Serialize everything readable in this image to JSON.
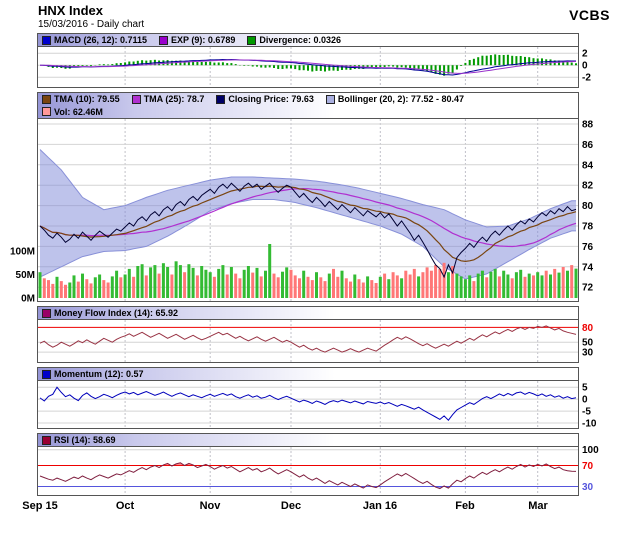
{
  "header": {
    "title": "HNX Index",
    "subtitle": "15/03/2016 - Daily chart",
    "brand": "VCBS"
  },
  "panels": {
    "macd": {
      "legend": [
        {
          "label": "MACD (26, 12): 0.7115",
          "color": "#0000cc"
        },
        {
          "label": "EXP (9): 0.6789",
          "color": "#9900cc"
        },
        {
          "label": "Divergence: 0.0326",
          "color": "#009900"
        }
      ],
      "ticks": [
        {
          "v": 2,
          "label": "2"
        },
        {
          "v": 0,
          "label": "0"
        },
        {
          "v": -2,
          "label": "-2"
        }
      ]
    },
    "price": {
      "legend_row1": [
        {
          "label": "TMA (10): 79.55",
          "color": "#7a4510"
        },
        {
          "label": "TMA (25): 78.7",
          "color": "#b030d0"
        },
        {
          "label": "Closing Price: 79.63",
          "color": "#000066"
        },
        {
          "label": "Bollinger (20, 2): 77.52 - 80.47",
          "color": "#aab0e0"
        }
      ],
      "legend_row2": [
        {
          "label": "Vol: 62.46M",
          "color": "#ff9999"
        }
      ],
      "ticks": [
        {
          "v": 88,
          "label": "88"
        },
        {
          "v": 86,
          "label": "86"
        },
        {
          "v": 84,
          "label": "84"
        },
        {
          "v": 82,
          "label": "82"
        },
        {
          "v": 80,
          "label": "80"
        },
        {
          "v": 78,
          "label": "78"
        },
        {
          "v": 76,
          "label": "76"
        },
        {
          "v": 74,
          "label": "74"
        },
        {
          "v": 72,
          "label": "72"
        }
      ],
      "volume_ticks": [
        {
          "v": 100,
          "label": "100M"
        },
        {
          "v": 50,
          "label": "50M"
        },
        {
          "v": 0,
          "label": "0M"
        }
      ]
    },
    "mfi": {
      "legend": [
        {
          "label": "Money Flow Index (14): 65.92",
          "color": "#990066"
        }
      ],
      "ticks": [
        {
          "v": 80,
          "label": "80",
          "color": "#ee0000"
        },
        {
          "v": 50,
          "label": "50"
        },
        {
          "v": 30,
          "label": "30"
        }
      ],
      "threshold": 80
    },
    "momentum": {
      "legend": [
        {
          "label": "Momentum (12): 0.57",
          "color": "#0000cc"
        }
      ],
      "ticks": [
        {
          "v": 5,
          "label": "5"
        },
        {
          "v": 0,
          "label": "0"
        },
        {
          "v": -5,
          "label": "-5"
        },
        {
          "v": -10,
          "label": "-10"
        }
      ]
    },
    "rsi": {
      "legend": [
        {
          "label": "RSI (14): 58.69",
          "color": "#990033"
        }
      ],
      "ticks": [
        {
          "v": 100,
          "label": "100"
        },
        {
          "v": 70,
          "label": "70",
          "color": "#ee0000"
        },
        {
          "v": 30,
          "label": "30",
          "color": "#5555dd"
        }
      ],
      "upper": 70,
      "lower": 30
    }
  },
  "xaxis": {
    "labels": [
      {
        "text": "Sep 15",
        "i": 0
      },
      {
        "text": "Oct",
        "i": 20
      },
      {
        "text": "Nov",
        "i": 40
      },
      {
        "text": "Dec",
        "i": 59
      },
      {
        "text": "Jan 16",
        "i": 80
      },
      {
        "text": "Feb",
        "i": 100
      },
      {
        "text": "Mar",
        "i": 117
      }
    ]
  },
  "colors": {
    "grid": "#d4d4d4",
    "vgrid": "#c0c0c8",
    "border": "#555555",
    "close_line": "#000033",
    "tma10": "#7a4510",
    "tma25": "#b030d0",
    "boll_fill": "rgba(125,135,215,0.5)",
    "boll_edge": "#8890d8",
    "vol_up": "#33bb33",
    "vol_down": "#ff7777",
    "macd_line": "#000099",
    "exp_line": "#9933cc",
    "hist": "#009900",
    "mfi_line": "#993344",
    "mfi_over_fill": "rgba(255,40,40,0.5)",
    "momentum_line": "#0000bb",
    "rsi_line": "#802040",
    "rsi_over_fill": "rgba(255,40,40,0.55)",
    "rsi_under_fill": "rgba(70,70,230,0.55)"
  },
  "chart_data": {
    "type": "line",
    "title": "HNX Index - Daily chart",
    "date_shown": "15/03/2016",
    "x_months": [
      "Sep 15",
      "Oct",
      "Nov",
      "Dec",
      "Jan 16",
      "Feb",
      "Mar"
    ],
    "month_start_index": [
      0,
      20,
      40,
      59,
      80,
      100,
      117
    ],
    "price_ylim": [
      72,
      88
    ],
    "volume_ylim_m": [
      0,
      100
    ],
    "macd_ylim": [
      -2,
      2
    ],
    "mfi_ylim": [
      30,
      80
    ],
    "momentum_ylim": [
      -10,
      5
    ],
    "rsi_ylim": [
      30,
      100
    ],
    "close": [
      78.0,
      77.6,
      77.1,
      76.8,
      77.3,
      76.9,
      76.4,
      76.7,
      77.2,
      76.8,
      77.4,
      77.0,
      76.6,
      77.1,
      77.5,
      77.2,
      76.9,
      77.3,
      77.7,
      77.5,
      77.9,
      78.3,
      78.0,
      78.6,
      78.9,
      78.5,
      79.1,
      79.4,
      79.0,
      79.6,
      79.9,
      79.5,
      80.1,
      80.4,
      80.0,
      80.6,
      80.9,
      80.5,
      81.0,
      81.3,
      81.6,
      81.2,
      81.8,
      82.1,
      81.7,
      82.2,
      81.8,
      81.4,
      81.9,
      82.2,
      81.8,
      82.1,
      81.6,
      81.9,
      82.2,
      81.7,
      81.3,
      81.7,
      82.0,
      81.8,
      81.3,
      80.8,
      81.2,
      80.7,
      80.3,
      80.8,
      80.4,
      79.9,
      80.4,
      80.0,
      79.6,
      80.1,
      79.7,
      79.3,
      79.8,
      79.4,
      79.0,
      79.5,
      79.2,
      78.9,
      79.3,
      78.8,
      79.2,
      78.6,
      78.0,
      78.5,
      77.9,
      77.3,
      76.6,
      77.1,
      76.4,
      75.7,
      74.9,
      74.2,
      73.8,
      73.0,
      74.2,
      73.4,
      74.9,
      75.4,
      75.8,
      76.3,
      75.9,
      76.5,
      76.9,
      76.5,
      77.1,
      77.5,
      77.1,
      77.6,
      78.0,
      77.6,
      78.1,
      78.5,
      78.2,
      78.7,
      78.4,
      78.9,
      79.3,
      79.0,
      79.5,
      79.2,
      79.7,
      79.4,
      79.9,
      79.5,
      79.63
    ],
    "volume_m": [
      55,
      42,
      38,
      30,
      45,
      36,
      28,
      33,
      48,
      35,
      52,
      40,
      31,
      44,
      50,
      38,
      33,
      46,
      58,
      44,
      50,
      62,
      45,
      68,
      72,
      48,
      65,
      70,
      52,
      74,
      66,
      50,
      78,
      70,
      55,
      72,
      64,
      48,
      68,
      60,
      55,
      45,
      62,
      70,
      50,
      66,
      52,
      42,
      60,
      68,
      54,
      64,
      46,
      58,
      115,
      52,
      44,
      56,
      65,
      60,
      48,
      42,
      58,
      45,
      38,
      55,
      44,
      36,
      52,
      62,
      45,
      58,
      42,
      35,
      50,
      40,
      33,
      46,
      38,
      32,
      45,
      52,
      40,
      55,
      48,
      42,
      58,
      50,
      62,
      46,
      55,
      65,
      58,
      70,
      62,
      75,
      55,
      68,
      52,
      46,
      40,
      48,
      36,
      52,
      58,
      44,
      56,
      62,
      46,
      58,
      50,
      42,
      55,
      60,
      45,
      52,
      48,
      55,
      48,
      58,
      50,
      62,
      54,
      66,
      58,
      70,
      62.46
    ],
    "boll_upper_ctrl": [
      85.5,
      83.5,
      80.8,
      79.6,
      80.0,
      80.8,
      81.5,
      82.0,
      82.5,
      82.8,
      82.8,
      82.7,
      82.6,
      82.4,
      82.1,
      81.7,
      81.2,
      80.7,
      80.1,
      79.6,
      78.6,
      77.9,
      78.0,
      78.7,
      79.7,
      80.47
    ],
    "boll_lower_ctrl": [
      73.0,
      74.0,
      75.0,
      75.5,
      75.6,
      76.0,
      77.0,
      78.2,
      79.5,
      80.2,
      80.6,
      80.6,
      80.3,
      79.8,
      79.2,
      78.6,
      78.0,
      77.2,
      76.0,
      74.0,
      72.8,
      73.3,
      74.5,
      75.7,
      76.8,
      77.52
    ],
    "mfi": [
      48,
      52,
      45,
      40,
      44,
      50,
      46,
      42,
      47,
      53,
      49,
      55,
      50,
      46,
      52,
      58,
      54,
      50,
      56,
      60,
      63,
      67,
      62,
      66,
      70,
      65,
      60,
      64,
      68,
      63,
      58,
      62,
      66,
      61,
      56,
      60,
      64,
      59,
      55,
      58,
      62,
      66,
      70,
      65,
      68,
      63,
      58,
      62,
      57,
      53,
      57,
      61,
      56,
      52,
      56,
      60,
      55,
      50,
      54,
      50,
      45,
      40,
      44,
      38,
      34,
      38,
      33,
      30,
      34,
      38,
      34,
      30,
      33,
      37,
      33,
      30,
      34,
      38,
      35,
      32,
      38,
      44,
      49,
      55,
      60,
      56,
      61,
      57,
      52,
      47,
      43,
      47,
      42,
      38,
      42,
      46,
      42,
      47,
      52,
      48,
      53,
      58,
      54,
      60,
      65,
      61,
      66,
      71,
      67,
      72,
      76,
      72,
      77,
      80,
      76,
      80,
      78,
      82,
      80,
      83,
      79,
      75,
      78,
      73,
      70,
      68,
      65.92
    ],
    "momentum": [
      0.5,
      -0.8,
      1.2,
      2.0,
      5.0,
      2.8,
      1.0,
      1.8,
      0.4,
      -0.6,
      1.5,
      2.6,
      1.2,
      0.2,
      1.0,
      2.0,
      1.4,
      0.6,
      1.6,
      2.4,
      3.0,
      2.2,
      2.8,
      1.8,
      2.5,
      3.2,
      2.4,
      1.6,
      2.2,
      3.0,
      2.0,
      1.2,
      2.0,
      2.6,
      1.8,
      1.0,
      1.8,
      1.2,
      0.6,
      1.4,
      2.0,
      1.2,
      1.8,
      2.4,
      1.6,
      2.2,
      1.0,
      0.4,
      1.2,
      1.8,
      0.8,
      1.4,
      0.4,
      0.8,
      1.6,
      0.6,
      -0.2,
      0.6,
      1.2,
      0.4,
      -0.4,
      -1.2,
      -0.4,
      -1.0,
      -1.8,
      -0.8,
      -1.4,
      -2.2,
      -1.2,
      -0.6,
      -1.2,
      -0.4,
      -1.0,
      -1.6,
      -0.8,
      -1.4,
      -2.0,
      -1.0,
      -1.4,
      -1.8,
      -1.2,
      -2.0,
      -1.4,
      -2.2,
      -3.0,
      -2.2,
      -2.8,
      -3.5,
      -4.2,
      -3.4,
      -4.5,
      -5.5,
      -6.5,
      -7.5,
      -8.5,
      -7.0,
      -8.8,
      -6.5,
      -4.5,
      -3.5,
      -2.5,
      -1.5,
      -2.2,
      -1.0,
      0.2,
      1.0,
      0.2,
      1.2,
      2.2,
      1.4,
      2.4,
      1.6,
      2.6,
      3.0,
      2.0,
      2.8,
      2.2,
      1.4,
      2.2,
      1.2,
      1.8,
      0.8,
      1.4,
      0.4,
      1.0,
      0.2,
      0.57
    ],
    "rsi": [
      50,
      47,
      44,
      42,
      46,
      43,
      40,
      44,
      48,
      45,
      50,
      46,
      43,
      48,
      52,
      49,
      46,
      50,
      54,
      52,
      56,
      60,
      57,
      62,
      66,
      62,
      67,
      70,
      66,
      71,
      74,
      69,
      73,
      75,
      70,
      74,
      71,
      66,
      69,
      72,
      68,
      63,
      67,
      70,
      65,
      68,
      63,
      58,
      62,
      66,
      61,
      64,
      58,
      61,
      65,
      59,
      54,
      58,
      62,
      58,
      53,
      48,
      52,
      46,
      42,
      46,
      41,
      36,
      41,
      37,
      33,
      38,
      34,
      30,
      35,
      31,
      27,
      33,
      30,
      28,
      33,
      39,
      44,
      49,
      54,
      50,
      55,
      50,
      45,
      40,
      36,
      40,
      34,
      29,
      26,
      31,
      27,
      35,
      42,
      39,
      45,
      50,
      46,
      52,
      57,
      53,
      58,
      62,
      58,
      63,
      67,
      63,
      68,
      72,
      67,
      71,
      68,
      72,
      69,
      73,
      68,
      64,
      67,
      62,
      60,
      59,
      58.69
    ],
    "indicators_stated": {
      "macd_26_12": 0.7115,
      "exp_9": 0.6789,
      "divergence": 0.0326,
      "tma_10": 79.55,
      "tma_25": 78.7,
      "closing_price": 79.63,
      "bollinger_low": 77.52,
      "bollinger_high": 80.47,
      "volume": "62.46M",
      "mfi_14": 65.92,
      "momentum_12": 0.57,
      "rsi_14": 58.69
    }
  }
}
